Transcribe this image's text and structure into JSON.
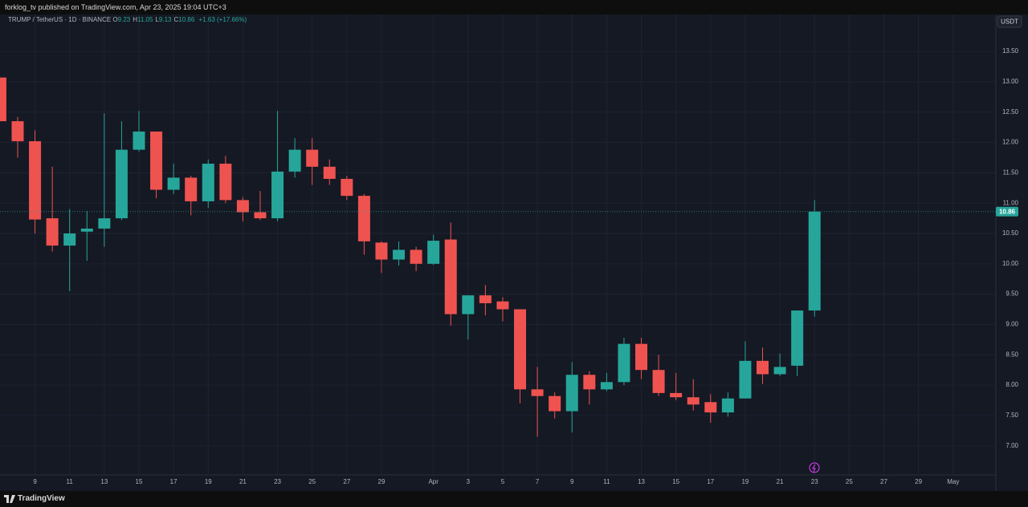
{
  "page": {
    "published": "forklog_tv published on TradingView.com, Apr 23, 2025 19:04 UTC+3",
    "brand": "TradingView",
    "currency": "USDT"
  },
  "legend": {
    "symbol": "TRUMP / TetherUS · 1D · BINANCE",
    "fields": [
      {
        "key": "O",
        "value": "9.23"
      },
      {
        "key": "H",
        "value": "11.05"
      },
      {
        "key": "L",
        "value": "9.13"
      },
      {
        "key": "C",
        "value": "10.86"
      }
    ],
    "change": "+1.63 (+17.66%)"
  },
  "chart_data": {
    "type": "candlestick",
    "categories": [
      null,
      null,
      "9",
      null,
      "11",
      null,
      "13",
      null,
      "15",
      null,
      "17",
      null,
      "19",
      null,
      "21",
      null,
      "23",
      null,
      "25",
      null,
      "27",
      null,
      "29",
      null,
      null,
      "Apr",
      null,
      "3",
      null,
      "5",
      null,
      "7",
      null,
      "9",
      null,
      "11",
      null,
      "13",
      null,
      "15",
      null,
      "17",
      null,
      "19",
      null,
      "21",
      null,
      "23",
      null,
      "25",
      null,
      "27",
      null,
      "29",
      null,
      "May"
    ],
    "open": [
      13.07,
      12.35,
      12.02,
      10.75,
      10.3,
      10.53,
      10.58,
      10.75,
      11.88,
      12.18,
      11.22,
      11.42,
      11.03,
      11.65,
      11.05,
      10.85,
      10.75,
      11.52,
      11.88,
      11.6,
      11.4,
      11.12,
      10.35,
      10.07,
      10.23,
      10.0,
      10.4,
      9.17,
      9.48,
      9.38,
      9.25,
      7.93,
      7.82,
      7.57,
      8.17,
      7.93,
      8.05,
      8.68,
      8.25,
      7.87,
      7.8,
      7.72,
      7.55,
      7.78,
      8.4,
      8.18,
      8.32,
      9.23,
      null,
      null,
      null,
      null,
      null,
      null,
      null,
      null
    ],
    "high": [
      13.07,
      12.42,
      12.2,
      11.6,
      10.9,
      10.87,
      12.48,
      12.35,
      12.52,
      12.18,
      11.65,
      11.45,
      11.72,
      11.78,
      11.1,
      11.2,
      12.52,
      12.07,
      12.07,
      11.72,
      11.45,
      11.15,
      10.37,
      10.37,
      10.28,
      10.48,
      10.68,
      9.48,
      9.65,
      9.45,
      9.25,
      8.3,
      7.88,
      8.38,
      8.23,
      8.2,
      8.78,
      8.78,
      8.5,
      8.2,
      8.1,
      7.85,
      7.88,
      8.72,
      8.62,
      8.52,
      9.23,
      11.05,
      null,
      null,
      null,
      null,
      null,
      null,
      null,
      null
    ],
    "low": [
      12.35,
      11.75,
      10.5,
      10.2,
      9.55,
      10.05,
      10.28,
      10.72,
      11.85,
      11.08,
      11.15,
      10.8,
      10.92,
      11.0,
      10.7,
      10.72,
      10.7,
      11.42,
      11.3,
      11.3,
      11.05,
      10.15,
      9.85,
      9.97,
      9.88,
      9.98,
      8.98,
      8.75,
      9.15,
      9.05,
      7.7,
      7.15,
      7.45,
      7.22,
      7.68,
      7.9,
      8.0,
      8.1,
      7.82,
      7.75,
      7.58,
      7.38,
      7.48,
      7.78,
      8.02,
      8.15,
      8.15,
      9.13,
      null,
      null,
      null,
      null,
      null,
      null,
      null,
      null
    ],
    "close": [
      12.35,
      12.02,
      10.73,
      10.3,
      10.5,
      10.58,
      10.75,
      11.88,
      12.18,
      11.22,
      11.42,
      11.03,
      11.65,
      11.05,
      10.85,
      10.75,
      11.52,
      11.88,
      11.6,
      11.4,
      11.12,
      10.37,
      10.07,
      10.23,
      10.0,
      10.38,
      9.17,
      9.48,
      9.35,
      9.25,
      7.93,
      7.82,
      7.57,
      8.17,
      7.93,
      8.05,
      8.68,
      8.25,
      7.87,
      7.8,
      7.68,
      7.55,
      7.78,
      8.4,
      8.18,
      8.3,
      9.23,
      10.86,
      null,
      null,
      null,
      null,
      null,
      null,
      null,
      null
    ],
    "last_price_label": "10.86",
    "up_color": "#26a69a",
    "down_color": "#ef5350",
    "ylim": [
      6.52,
      14.11
    ],
    "yticks": [
      {
        "value": 7,
        "label": "7.00"
      },
      {
        "value": 7.5,
        "label": "7.50"
      },
      {
        "value": 8,
        "label": "8.00"
      },
      {
        "value": 8.5,
        "label": "8.50"
      },
      {
        "value": 9,
        "label": "9.00"
      },
      {
        "value": 9.5,
        "label": "9.50"
      },
      {
        "value": 10,
        "label": "10.00"
      },
      {
        "value": 10.5,
        "label": "10.50"
      },
      {
        "value": 11,
        "label": "11.00"
      },
      {
        "value": 11.5,
        "label": "11.50"
      },
      {
        "value": 12,
        "label": "12.00"
      },
      {
        "value": 12.5,
        "label": "12.50"
      },
      {
        "value": 13,
        "label": "13.00"
      },
      {
        "value": 13.5,
        "label": "13.50"
      }
    ],
    "grid": true
  }
}
